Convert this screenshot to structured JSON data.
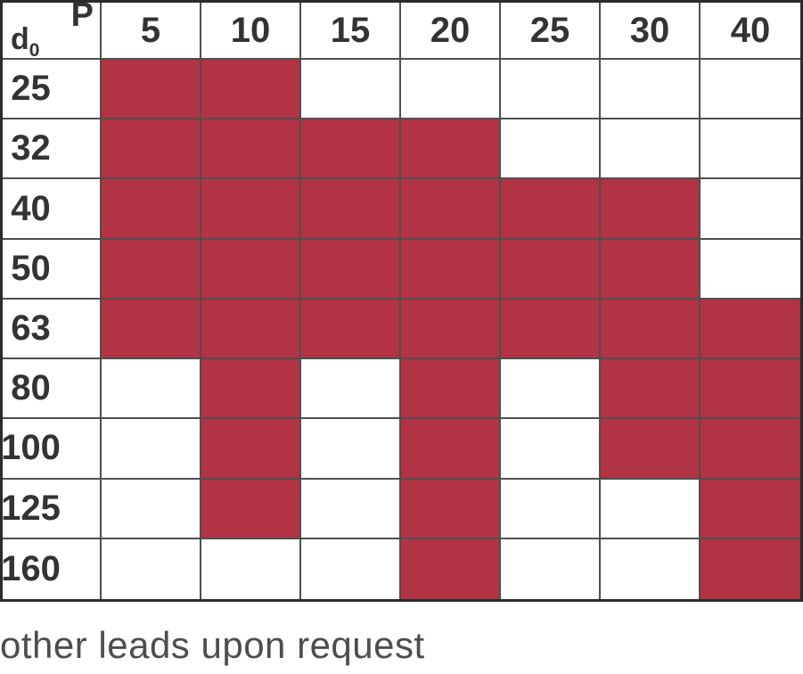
{
  "corner": {
    "col_axis_label": "P",
    "row_axis_label": "d",
    "row_axis_sub": "0"
  },
  "footnote": "other leads upon request",
  "colors": {
    "filled": "#B23343",
    "grid_line": "#4f4f4f",
    "outer_border": "#2b2b2b",
    "text": "#333333",
    "footnote_text": "#4d4d4d"
  },
  "chart_data": {
    "type": "heatmap",
    "title": "",
    "x_axis_label": "P",
    "y_axis_label": "d0",
    "columns": [
      "5",
      "10",
      "15",
      "20",
      "25",
      "30",
      "40"
    ],
    "rows": [
      "25",
      "32",
      "40",
      "50",
      "63",
      "80",
      "100",
      "125",
      "160"
    ],
    "filled": [
      [
        1,
        1,
        0,
        0,
        0,
        0,
        0
      ],
      [
        1,
        1,
        1,
        1,
        0,
        0,
        0
      ],
      [
        1,
        1,
        1,
        1,
        1,
        1,
        0
      ],
      [
        1,
        1,
        1,
        1,
        1,
        1,
        0
      ],
      [
        1,
        1,
        1,
        1,
        1,
        1,
        1
      ],
      [
        0,
        1,
        0,
        1,
        0,
        1,
        1
      ],
      [
        0,
        1,
        0,
        1,
        0,
        1,
        1
      ],
      [
        0,
        1,
        0,
        1,
        0,
        0,
        1
      ],
      [
        0,
        0,
        0,
        1,
        0,
        0,
        1
      ]
    ]
  }
}
